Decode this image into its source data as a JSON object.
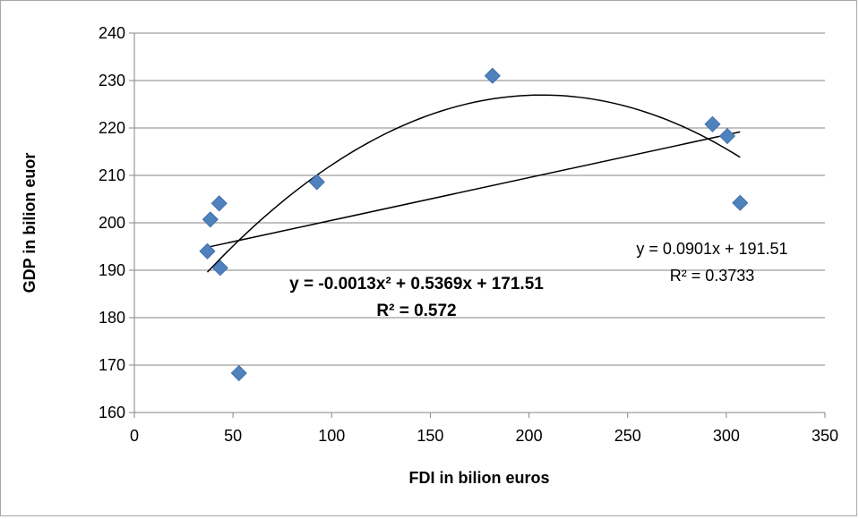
{
  "chart_data": {
    "type": "scatter",
    "title": "",
    "xlabel": "FDI in bilion euros",
    "ylabel": "GDP in bilion euor",
    "xlim": [
      0,
      350
    ],
    "ylim": [
      160,
      240
    ],
    "xticks": [
      0,
      50,
      100,
      150,
      200,
      250,
      300,
      350
    ],
    "yticks": [
      160,
      170,
      180,
      190,
      200,
      210,
      220,
      230,
      240
    ],
    "grid": "horizontal",
    "legend": "none",
    "marker_color": "#4f81bd",
    "points": [
      {
        "x": 37,
        "y": 194.0
      },
      {
        "x": 38.5,
        "y": 200.7
      },
      {
        "x": 43,
        "y": 204.1
      },
      {
        "x": 43.5,
        "y": 190.5
      },
      {
        "x": 53,
        "y": 168.3
      },
      {
        "x": 92.5,
        "y": 208.6
      },
      {
        "x": 181.5,
        "y": 231.0
      },
      {
        "x": 293,
        "y": 220.8
      },
      {
        "x": 300.5,
        "y": 218.3
      },
      {
        "x": 307,
        "y": 204.2
      }
    ],
    "trendlines": [
      {
        "kind": "linear",
        "slope": 0.0901,
        "intercept": 191.51,
        "x_range": [
          37,
          307
        ],
        "equation": "y = 0.0901x + 191.51",
        "r2": "R² = 0.3733"
      },
      {
        "kind": "polynomial",
        "coefficients": [
          -0.0013,
          0.5369,
          171.51
        ],
        "x_range": [
          37,
          307
        ],
        "equation": "y = -0.0013x² + 0.5369x + 171.51",
        "r2": "R² = 0.572"
      }
    ]
  }
}
